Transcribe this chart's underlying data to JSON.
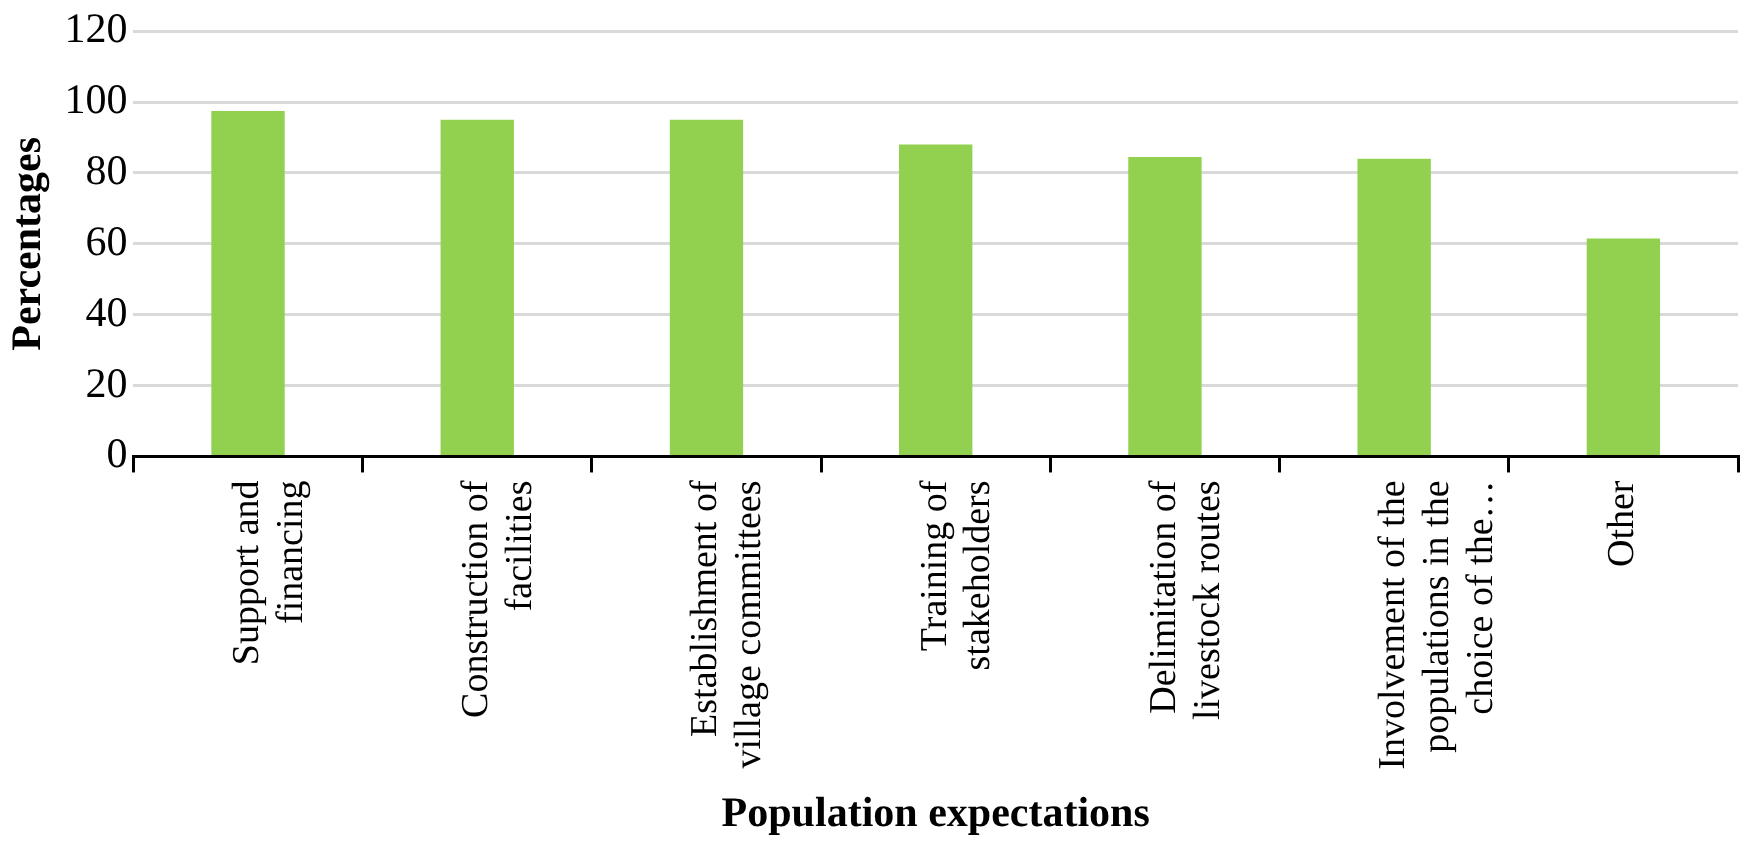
{
  "chart_data": {
    "type": "bar",
    "xlabel": "Population expectations",
    "ylabel": "Percentages",
    "categories": [
      "Support and financing",
      "Construction of facilities",
      "Establishment of village committees",
      "Training of stakeholders",
      "Delimitation of livestock routes",
      "Involvement of the populations in the choice of the…",
      "Other"
    ],
    "values": [
      97.5,
      95,
      95,
      88,
      84.5,
      84,
      61.5
    ],
    "color": "#92d050",
    "ylim": [
      0,
      120
    ],
    "yticks": [
      0,
      20,
      40,
      60,
      80,
      100,
      120
    ],
    "grid": "y",
    "legend": false
  }
}
